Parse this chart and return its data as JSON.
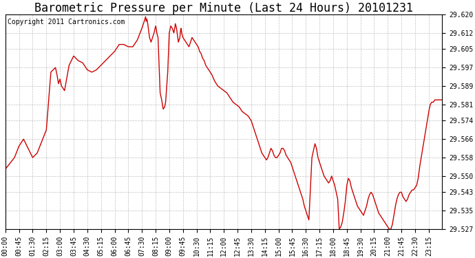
{
  "title": "Barometric Pressure per Minute (Last 24 Hours) 20101231",
  "copyright": "Copyright 2011 Cartronics.com",
  "line_color": "#cc0000",
  "background_color": "#ffffff",
  "grid_color": "#b0b0b0",
  "ylim": [
    29.527,
    29.62
  ],
  "yticks": [
    29.527,
    29.535,
    29.543,
    29.55,
    29.558,
    29.566,
    29.574,
    29.581,
    29.589,
    29.597,
    29.605,
    29.612,
    29.62
  ],
  "xtick_labels": [
    "00:00",
    "00:45",
    "01:30",
    "02:15",
    "03:00",
    "03:45",
    "04:30",
    "05:15",
    "06:00",
    "06:45",
    "07:30",
    "08:15",
    "09:00",
    "09:45",
    "10:30",
    "11:15",
    "12:00",
    "12:45",
    "13:30",
    "14:15",
    "15:00",
    "15:45",
    "16:30",
    "17:15",
    "18:00",
    "18:45",
    "19:30",
    "20:15",
    "21:00",
    "21:45",
    "22:30",
    "23:15"
  ],
  "title_fontsize": 12,
  "copyright_fontsize": 7,
  "tick_fontsize": 7,
  "linewidth": 1.0,
  "keypoints": [
    [
      0,
      29.553
    ],
    [
      30,
      29.558
    ],
    [
      45,
      29.563
    ],
    [
      60,
      29.566
    ],
    [
      75,
      29.562
    ],
    [
      90,
      29.558
    ],
    [
      105,
      29.56
    ],
    [
      120,
      29.565
    ],
    [
      135,
      29.57
    ],
    [
      150,
      29.595
    ],
    [
      165,
      29.597
    ],
    [
      170,
      29.594
    ],
    [
      175,
      29.59
    ],
    [
      180,
      29.592
    ],
    [
      185,
      29.589
    ],
    [
      195,
      29.587
    ],
    [
      210,
      29.598
    ],
    [
      225,
      29.602
    ],
    [
      240,
      29.6
    ],
    [
      255,
      29.599
    ],
    [
      270,
      29.596
    ],
    [
      285,
      29.595
    ],
    [
      300,
      29.596
    ],
    [
      315,
      29.598
    ],
    [
      330,
      29.6
    ],
    [
      345,
      29.602
    ],
    [
      360,
      29.604
    ],
    [
      375,
      29.607
    ],
    [
      390,
      29.607
    ],
    [
      405,
      29.606
    ],
    [
      420,
      29.606
    ],
    [
      435,
      29.609
    ],
    [
      450,
      29.614
    ],
    [
      460,
      29.618
    ],
    [
      462,
      29.619
    ],
    [
      464,
      29.617
    ],
    [
      466,
      29.618
    ],
    [
      468,
      29.617
    ],
    [
      470,
      29.615
    ],
    [
      473,
      29.612
    ],
    [
      475,
      29.61
    ],
    [
      480,
      29.608
    ],
    [
      485,
      29.61
    ],
    [
      490,
      29.612
    ],
    [
      495,
      29.615
    ],
    [
      497,
      29.614
    ],
    [
      499,
      29.612
    ],
    [
      501,
      29.611
    ],
    [
      503,
      29.61
    ],
    [
      510,
      29.586
    ],
    [
      515,
      29.583
    ],
    [
      520,
      29.579
    ],
    [
      525,
      29.58
    ],
    [
      528,
      29.582
    ],
    [
      530,
      29.586
    ],
    [
      535,
      29.595
    ],
    [
      540,
      29.612
    ],
    [
      545,
      29.615
    ],
    [
      550,
      29.614
    ],
    [
      555,
      29.612
    ],
    [
      558,
      29.614
    ],
    [
      560,
      29.616
    ],
    [
      562,
      29.615
    ],
    [
      564,
      29.614
    ],
    [
      566,
      29.612
    ],
    [
      568,
      29.61
    ],
    [
      570,
      29.608
    ],
    [
      575,
      29.61
    ],
    [
      577,
      29.613
    ],
    [
      579,
      29.614
    ],
    [
      581,
      29.612
    ],
    [
      583,
      29.611
    ],
    [
      585,
      29.61
    ],
    [
      590,
      29.609
    ],
    [
      595,
      29.608
    ],
    [
      600,
      29.607
    ],
    [
      605,
      29.606
    ],
    [
      610,
      29.608
    ],
    [
      615,
      29.61
    ],
    [
      620,
      29.609
    ],
    [
      625,
      29.608
    ],
    [
      630,
      29.607
    ],
    [
      635,
      29.606
    ],
    [
      640,
      29.604
    ],
    [
      645,
      29.603
    ],
    [
      650,
      29.601
    ],
    [
      655,
      29.6
    ],
    [
      660,
      29.598
    ],
    [
      670,
      29.596
    ],
    [
      680,
      29.594
    ],
    [
      690,
      29.591
    ],
    [
      700,
      29.589
    ],
    [
      710,
      29.588
    ],
    [
      720,
      29.587
    ],
    [
      730,
      29.586
    ],
    [
      740,
      29.584
    ],
    [
      750,
      29.582
    ],
    [
      760,
      29.581
    ],
    [
      770,
      29.58
    ],
    [
      780,
      29.578
    ],
    [
      790,
      29.577
    ],
    [
      800,
      29.576
    ],
    [
      810,
      29.574
    ],
    [
      815,
      29.572
    ],
    [
      820,
      29.57
    ],
    [
      825,
      29.568
    ],
    [
      830,
      29.566
    ],
    [
      835,
      29.564
    ],
    [
      840,
      29.562
    ],
    [
      845,
      29.56
    ],
    [
      850,
      29.559
    ],
    [
      855,
      29.558
    ],
    [
      860,
      29.557
    ],
    [
      865,
      29.558
    ],
    [
      870,
      29.56
    ],
    [
      875,
      29.562
    ],
    [
      880,
      29.561
    ],
    [
      885,
      29.559
    ],
    [
      890,
      29.558
    ],
    [
      895,
      29.558
    ],
    [
      900,
      29.559
    ],
    [
      905,
      29.56
    ],
    [
      910,
      29.562
    ],
    [
      915,
      29.562
    ],
    [
      920,
      29.561
    ],
    [
      925,
      29.559
    ],
    [
      930,
      29.558
    ],
    [
      935,
      29.557
    ],
    [
      940,
      29.556
    ],
    [
      945,
      29.554
    ],
    [
      950,
      29.552
    ],
    [
      955,
      29.55
    ],
    [
      960,
      29.548
    ],
    [
      965,
      29.546
    ],
    [
      970,
      29.544
    ],
    [
      975,
      29.542
    ],
    [
      980,
      29.54
    ],
    [
      985,
      29.537
    ],
    [
      990,
      29.535
    ],
    [
      995,
      29.533
    ],
    [
      1000,
      29.531
    ],
    [
      1010,
      29.558
    ],
    [
      1020,
      29.564
    ],
    [
      1025,
      29.562
    ],
    [
      1030,
      29.558
    ],
    [
      1035,
      29.556
    ],
    [
      1040,
      29.554
    ],
    [
      1045,
      29.552
    ],
    [
      1050,
      29.55
    ],
    [
      1055,
      29.549
    ],
    [
      1060,
      29.548
    ],
    [
      1065,
      29.547
    ],
    [
      1070,
      29.548
    ],
    [
      1075,
      29.55
    ],
    [
      1080,
      29.548
    ],
    [
      1085,
      29.546
    ],
    [
      1090,
      29.543
    ],
    [
      1095,
      29.54
    ],
    [
      1100,
      29.527
    ],
    [
      1105,
      29.528
    ],
    [
      1110,
      29.53
    ],
    [
      1115,
      29.534
    ],
    [
      1120,
      29.539
    ],
    [
      1125,
      29.546
    ],
    [
      1130,
      29.549
    ],
    [
      1135,
      29.548
    ],
    [
      1140,
      29.545
    ],
    [
      1145,
      29.543
    ],
    [
      1150,
      29.541
    ],
    [
      1155,
      29.539
    ],
    [
      1160,
      29.537
    ],
    [
      1165,
      29.536
    ],
    [
      1170,
      29.535
    ],
    [
      1175,
      29.534
    ],
    [
      1180,
      29.533
    ],
    [
      1185,
      29.535
    ],
    [
      1190,
      29.537
    ],
    [
      1195,
      29.54
    ],
    [
      1200,
      29.542
    ],
    [
      1205,
      29.543
    ],
    [
      1210,
      29.542
    ],
    [
      1215,
      29.54
    ],
    [
      1220,
      29.538
    ],
    [
      1225,
      29.536
    ],
    [
      1230,
      29.534
    ],
    [
      1235,
      29.533
    ],
    [
      1240,
      29.532
    ],
    [
      1245,
      29.531
    ],
    [
      1250,
      29.53
    ],
    [
      1255,
      29.529
    ],
    [
      1260,
      29.528
    ],
    [
      1265,
      29.527
    ],
    [
      1270,
      29.527
    ],
    [
      1275,
      29.529
    ],
    [
      1280,
      29.533
    ],
    [
      1285,
      29.537
    ],
    [
      1290,
      29.54
    ],
    [
      1295,
      29.542
    ],
    [
      1300,
      29.543
    ],
    [
      1305,
      29.543
    ],
    [
      1310,
      29.541
    ],
    [
      1315,
      29.54
    ],
    [
      1320,
      29.539
    ],
    [
      1325,
      29.54
    ],
    [
      1330,
      29.542
    ],
    [
      1335,
      29.543
    ],
    [
      1340,
      29.544
    ],
    [
      1345,
      29.544
    ],
    [
      1350,
      29.545
    ],
    [
      1355,
      29.546
    ],
    [
      1360,
      29.549
    ],
    [
      1365,
      29.554
    ],
    [
      1370,
      29.558
    ],
    [
      1375,
      29.562
    ],
    [
      1380,
      29.566
    ],
    [
      1385,
      29.57
    ],
    [
      1390,
      29.574
    ],
    [
      1395,
      29.578
    ],
    [
      1400,
      29.581
    ],
    [
      1405,
      29.582
    ],
    [
      1410,
      29.582
    ],
    [
      1415,
      29.583
    ],
    [
      1420,
      29.583
    ],
    [
      1425,
      29.583
    ],
    [
      1430,
      29.583
    ],
    [
      1435,
      29.583
    ],
    [
      1439,
      29.583
    ]
  ]
}
